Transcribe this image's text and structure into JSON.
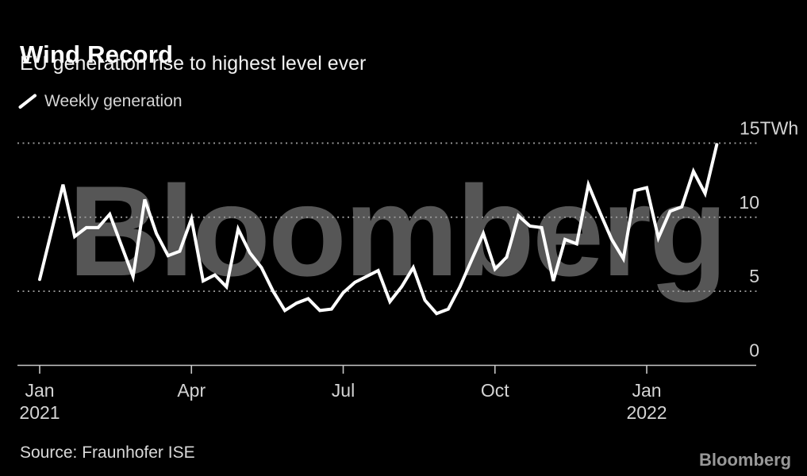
{
  "header": {
    "title": "Wind Record",
    "subtitle": "EU generation rise to highest level ever"
  },
  "legend": {
    "items": [
      {
        "label": "Weekly generation",
        "marker": "line-slash-icon",
        "color": "#ffffff"
      }
    ]
  },
  "footer": {
    "source": "Source: Fraunhofer ISE",
    "brand": "Bloomberg"
  },
  "watermark_text": "Bloomberg",
  "colors": {
    "background": "#000000",
    "line": "#ffffff",
    "grid": "#9a9a9a",
    "axis": "#c6c6c6",
    "label": "#d4d4d4",
    "watermark": "#565656",
    "brand_logo": "#989898"
  },
  "chart_data": {
    "type": "line",
    "title": "Wind Record",
    "subtitle": "EU generation rise to highest level ever",
    "unit": "TWh",
    "x_description": "weekly, Jan 2021 to mid-Feb 2022",
    "ylim": [
      0,
      15
    ],
    "grid": "dotted-horizontal",
    "legend_position": "top-left",
    "y_ticks": [
      {
        "value": 15,
        "label": "15TWh"
      },
      {
        "value": 10,
        "label": "10"
      },
      {
        "value": 5,
        "label": "5"
      },
      {
        "value": 0,
        "label": "0"
      }
    ],
    "x_ticks": [
      {
        "week": 0,
        "label": "Jan",
        "sublabel": "2021"
      },
      {
        "week": 13,
        "label": "Apr"
      },
      {
        "week": 26,
        "label": "Jul"
      },
      {
        "week": 39,
        "label": "Oct"
      },
      {
        "week": 52,
        "label": "Jan",
        "sublabel": "2022"
      }
    ],
    "series": [
      {
        "name": "Weekly generation",
        "values": [
          5.8,
          9.0,
          12.2,
          8.7,
          9.3,
          9.3,
          10.2,
          8.1,
          6.0,
          11.2,
          8.9,
          7.4,
          7.7,
          9.9,
          5.7,
          6.1,
          5.3,
          9.2,
          7.6,
          6.6,
          5.0,
          3.7,
          4.2,
          4.5,
          3.7,
          3.8,
          4.9,
          5.6,
          6.0,
          6.4,
          4.3,
          5.3,
          6.6,
          4.4,
          3.5,
          3.8,
          5.3,
          7.1,
          8.9,
          6.5,
          7.3,
          10.1,
          9.4,
          9.3,
          5.7,
          8.5,
          8.2,
          12.2,
          10.3,
          8.5,
          7.2,
          11.8,
          12.0,
          8.6,
          10.4,
          10.7,
          13.1,
          11.6,
          14.9
        ]
      }
    ]
  }
}
